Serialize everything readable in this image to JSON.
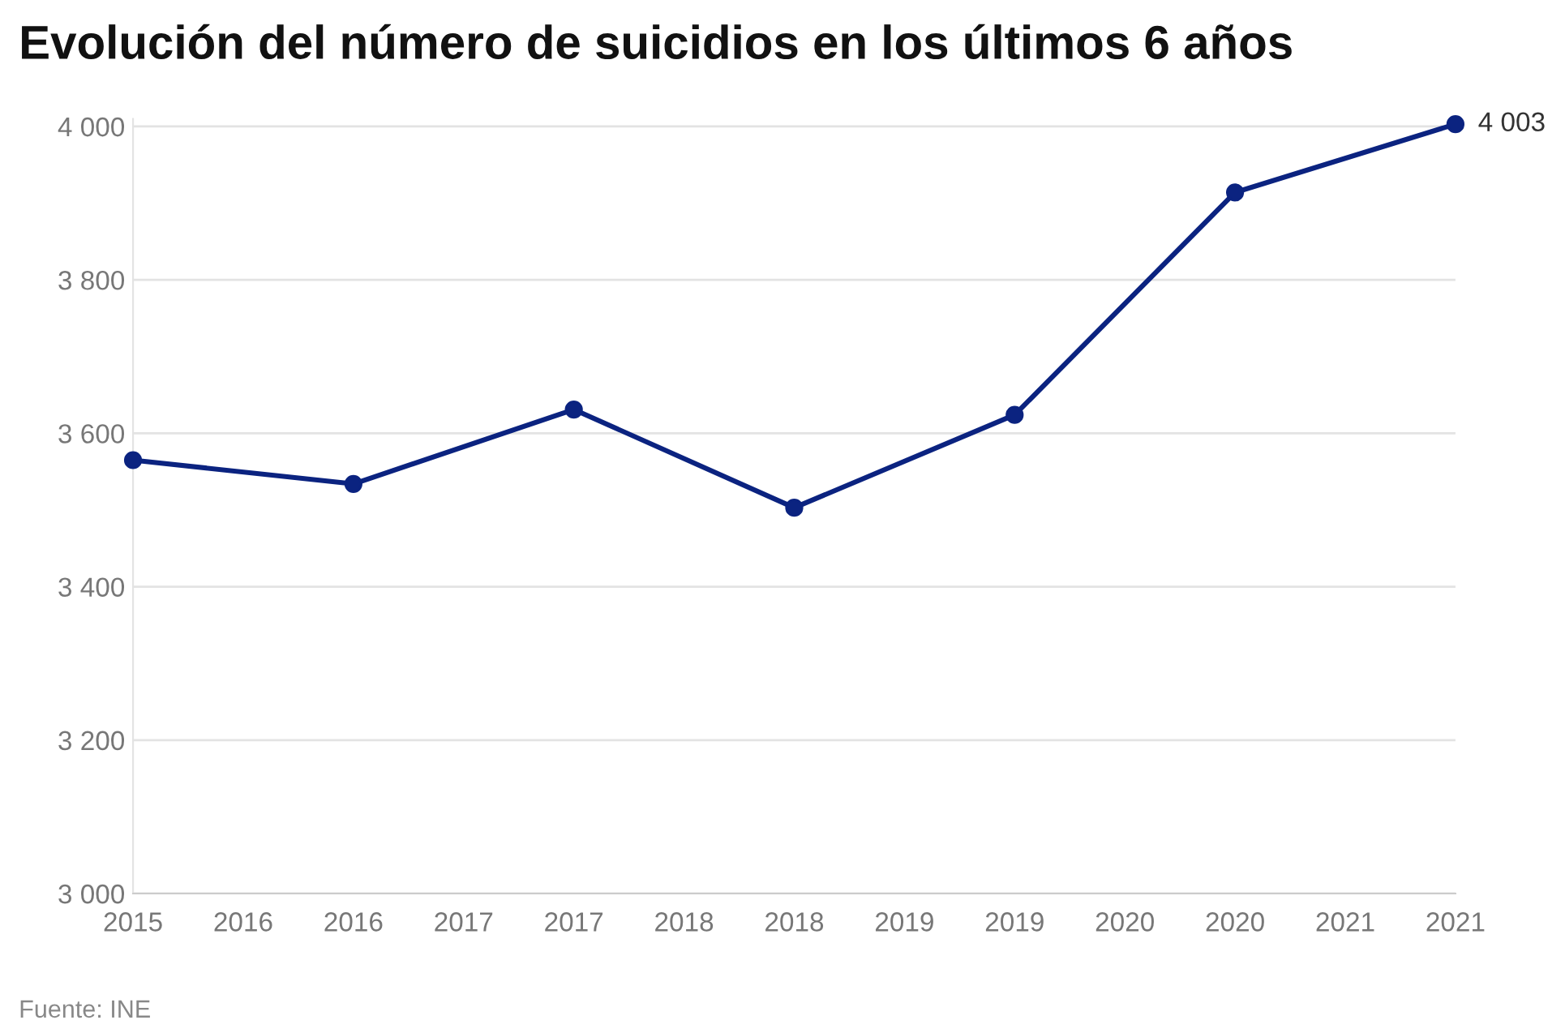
{
  "chart_data": {
    "type": "line",
    "title": "Evolución del número de suicidios en los últimos 6 años",
    "x": [
      2015,
      2016,
      2017,
      2018,
      2019,
      2020,
      2021
    ],
    "series": [
      {
        "color": "#0b2380",
        "values": [
          3565,
          3534,
          3631,
          3503,
          3624,
          3914,
          4003
        ],
        "value_labels": [
          null,
          null,
          null,
          null,
          null,
          null,
          "4 003"
        ]
      }
    ],
    "xlim": [
      2015,
      2021
    ],
    "xticks": [
      {
        "value": 2015,
        "label": "2015"
      },
      {
        "value": 2015.5,
        "label": "2016"
      },
      {
        "value": 2016,
        "label": "2016"
      },
      {
        "value": 2016.5,
        "label": "2017"
      },
      {
        "value": 2017,
        "label": "2017"
      },
      {
        "value": 2017.5,
        "label": "2018"
      },
      {
        "value": 2018,
        "label": "2018"
      },
      {
        "value": 2018.5,
        "label": "2019"
      },
      {
        "value": 2019,
        "label": "2019"
      },
      {
        "value": 2019.5,
        "label": "2020"
      },
      {
        "value": 2020,
        "label": "2020"
      },
      {
        "value": 2020.5,
        "label": "2021"
      },
      {
        "value": 2021,
        "label": "2021"
      }
    ],
    "ylim": [
      3000,
      4010
    ],
    "yticks": [
      {
        "value": 3000,
        "label": "3 000"
      },
      {
        "value": 3200,
        "label": "3 200"
      },
      {
        "value": 3400,
        "label": "3 400"
      },
      {
        "value": 3600,
        "label": "3 600"
      },
      {
        "value": 3800,
        "label": "3 800"
      },
      {
        "value": 4000,
        "label": "4 000"
      }
    ],
    "grid": "y",
    "marker": "circle",
    "line_style": "solid",
    "legend": false,
    "annotations": [
      "Fuente: INE"
    ]
  }
}
